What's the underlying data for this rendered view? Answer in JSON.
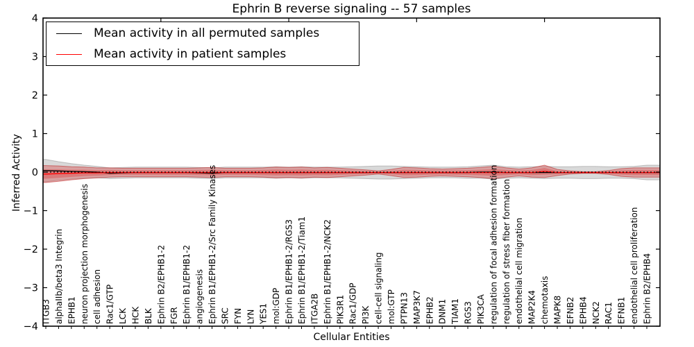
{
  "chart_data": {
    "type": "line",
    "title": "Ephrin B reverse signaling -- 57 samples",
    "xlabel": "Cellular Entities",
    "ylabel": "Inferred Activity",
    "ylim": [
      -4,
      4
    ],
    "yticks": [
      -4,
      -3,
      -2,
      -1,
      0,
      1,
      2,
      3,
      4
    ],
    "grid": false,
    "legend_position": "upper left",
    "top_tick_indices": [
      9,
      19,
      29,
      39
    ],
    "categories": [
      "ITGB3",
      "alphaIIb/beta3 Integrin",
      "EPHB1",
      "neuron projection morphogenesis",
      "cell adhesion",
      "Rac1/GTP",
      "LCK",
      "HCK",
      "BLK",
      "Ephrin B2/EPHB1-2",
      "FGR",
      "Ephrin B1/EPHB1-2",
      "angiogenesis",
      "Ephrin B1/EPHB1-2/Src Family Kinases",
      "SRC",
      "FYN",
      "LYN",
      "YES1",
      "mol:GDP",
      "Ephrin B1/EPHB1-2/RGS3",
      "Ephrin B1/EPHB1-2/Tiam1",
      "ITGA2B",
      "Ephrin B1/EPHB1-2/NCK2",
      "PIK3R1",
      "Rac1/GDP",
      "PI3K",
      "cell-cell signaling",
      "mol:GTP",
      "PTPN13",
      "MAP3K7",
      "EPHB2",
      "DNM1",
      "TIAM1",
      "RGS3",
      "PIK3CA",
      "regulation of focal adhesion formation",
      "regulation of stress fiber formation",
      "endothelial cell migration",
      "MAP2K4",
      "chemotaxis",
      "MAPK8",
      "EFNB2",
      "EPHB4",
      "NCK2",
      "RAC1",
      "EFNB1",
      "endothelial cell proliferation",
      "Ephrin B2/EPHB4"
    ],
    "series": [
      {
        "name": "Mean activity in all permuted samples",
        "color": "#000000",
        "values": [
          0.04,
          0.03,
          0.02,
          0.01,
          0.0,
          -0.03,
          -0.02,
          -0.01,
          -0.01,
          -0.01,
          -0.01,
          -0.01,
          -0.02,
          -0.03,
          -0.01,
          -0.01,
          -0.01,
          -0.01,
          -0.01,
          -0.01,
          -0.01,
          -0.01,
          -0.01,
          -0.01,
          -0.01,
          -0.01,
          -0.01,
          -0.01,
          -0.01,
          -0.01,
          -0.01,
          -0.01,
          -0.01,
          -0.01,
          0.0,
          0.0,
          -0.01,
          -0.01,
          -0.01,
          -0.01,
          -0.01,
          -0.01,
          -0.01,
          -0.01,
          -0.01,
          -0.01,
          -0.01,
          -0.01
        ],
        "band_halfwidth": [
          0.29,
          0.24,
          0.2,
          0.17,
          0.15,
          0.14,
          0.14,
          0.14,
          0.14,
          0.14,
          0.14,
          0.14,
          0.14,
          0.14,
          0.14,
          0.14,
          0.14,
          0.14,
          0.15,
          0.14,
          0.15,
          0.14,
          0.14,
          0.14,
          0.15,
          0.16,
          0.17,
          0.17,
          0.16,
          0.15,
          0.14,
          0.14,
          0.14,
          0.15,
          0.16,
          0.18,
          0.15,
          0.14,
          0.15,
          0.16,
          0.15,
          0.15,
          0.16,
          0.16,
          0.15,
          0.15,
          0.16,
          0.19
        ],
        "band_color": "#808080"
      },
      {
        "name": "Mean activity in patient samples",
        "color": "#ff0000",
        "values": [
          -0.05,
          -0.04,
          -0.03,
          -0.02,
          -0.02,
          -0.01,
          -0.01,
          -0.01,
          -0.01,
          -0.01,
          -0.01,
          -0.01,
          -0.01,
          -0.01,
          -0.01,
          -0.01,
          -0.01,
          -0.01,
          -0.01,
          -0.01,
          -0.01,
          -0.01,
          -0.01,
          -0.01,
          -0.01,
          -0.01,
          -0.01,
          -0.01,
          -0.01,
          -0.01,
          -0.01,
          -0.01,
          -0.01,
          -0.01,
          -0.01,
          -0.01,
          -0.01,
          -0.01,
          -0.01,
          0.02,
          -0.01,
          -0.01,
          -0.01,
          -0.01,
          -0.01,
          -0.01,
          -0.01,
          -0.01
        ],
        "band_halfwidth": [
          0.22,
          0.2,
          0.17,
          0.15,
          0.13,
          0.12,
          0.11,
          0.11,
          0.11,
          0.11,
          0.11,
          0.11,
          0.12,
          0.13,
          0.11,
          0.11,
          0.11,
          0.12,
          0.14,
          0.13,
          0.14,
          0.12,
          0.13,
          0.11,
          0.09,
          0.07,
          0.04,
          0.08,
          0.13,
          0.12,
          0.1,
          0.09,
          0.1,
          0.11,
          0.13,
          0.16,
          0.12,
          0.09,
          0.12,
          0.16,
          0.08,
          0.04,
          0.02,
          0.02,
          0.05,
          0.1,
          0.12,
          0.12
        ],
        "band_color": "#db4444"
      }
    ],
    "zero_reference_line": {
      "value": 0,
      "style": "dotted",
      "color": "#000000"
    }
  },
  "legend": {
    "items": [
      {
        "label": "Mean activity in all permuted samples",
        "color": "#000000"
      },
      {
        "label": "Mean activity in patient samples",
        "color": "#ff0000"
      }
    ]
  }
}
